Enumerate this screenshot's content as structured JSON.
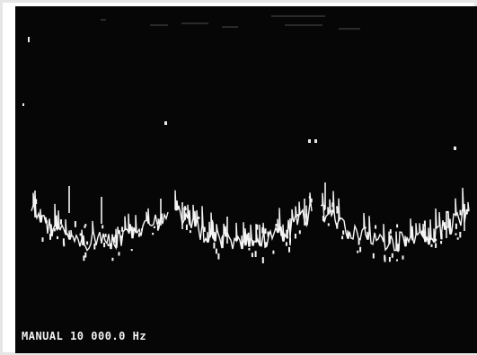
{
  "display": {
    "readout": "MANUAL 10 000.0 Hz",
    "colors": {
      "screen_background": "#060606",
      "trace": "#f5f5f5",
      "frame": "#e6e6e6"
    }
  },
  "screen": {
    "icons": [
      "spectrum-trace",
      "marker-dot"
    ]
  }
}
